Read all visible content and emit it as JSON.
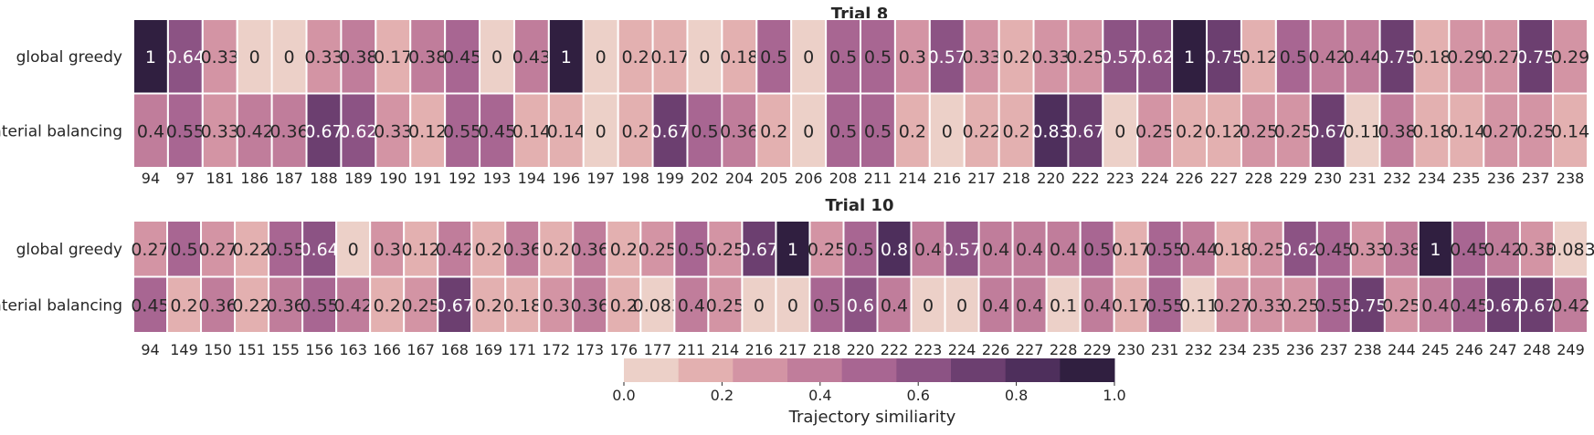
{
  "chart_data": [
    {
      "type": "heatmap",
      "title": "Trial 8",
      "rows": [
        "global greedy",
        "material balancing"
      ],
      "columns": [
        "94",
        "97",
        "181",
        "186",
        "187",
        "188",
        "189",
        "190",
        "191",
        "192",
        "193",
        "194",
        "196",
        "197",
        "198",
        "199",
        "202",
        "204",
        "205",
        "206",
        "208",
        "211",
        "214",
        "216",
        "217",
        "218",
        "220",
        "222",
        "223",
        "224",
        "226",
        "227",
        "228",
        "229",
        "230",
        "231",
        "232",
        "234",
        "235",
        "236",
        "237",
        "238"
      ],
      "values": [
        [
          1,
          0.64,
          0.33,
          0,
          0,
          0.33,
          0.38,
          0.17,
          0.38,
          0.45,
          0,
          0.43,
          1,
          0,
          0.2,
          0.17,
          0,
          0.18,
          0.5,
          0,
          0.5,
          0.5,
          0.3,
          0.57,
          0.33,
          0.2,
          0.33,
          0.25,
          0.57,
          0.62,
          1,
          0.75,
          0.12,
          0.5,
          0.42,
          0.44,
          0.75,
          0.18,
          0.29,
          0.27,
          0.75,
          0.29
        ],
        [
          0.4,
          0.55,
          0.33,
          0.42,
          0.36,
          0.67,
          0.62,
          0.33,
          0.12,
          0.55,
          0.45,
          0.14,
          0.14,
          0,
          0.2,
          0.67,
          0.5,
          0.36,
          0.2,
          0,
          0.5,
          0.5,
          0.2,
          0,
          0.22,
          0.2,
          0.83,
          0.67,
          0,
          0.25,
          0.2,
          0.12,
          0.25,
          0.25,
          0.67,
          0.11,
          0.38,
          0.18,
          0.14,
          0.27,
          0.25,
          0.14
        ]
      ],
      "value_range": [
        0,
        1
      ]
    },
    {
      "type": "heatmap",
      "title": "Trial 10",
      "rows": [
        "global greedy",
        "material balancing"
      ],
      "columns": [
        "94",
        "149",
        "150",
        "151",
        "155",
        "156",
        "163",
        "166",
        "167",
        "168",
        "169",
        "171",
        "172",
        "173",
        "176",
        "177",
        "211",
        "214",
        "216",
        "217",
        "218",
        "220",
        "222",
        "223",
        "224",
        "226",
        "227",
        "228",
        "229",
        "230",
        "231",
        "232",
        "234",
        "235",
        "236",
        "237",
        "238",
        "244",
        "245",
        "246",
        "247",
        "248",
        "249"
      ],
      "values": [
        [
          0.27,
          0.5,
          0.27,
          0.22,
          0.55,
          0.64,
          0,
          0.3,
          0.12,
          0.42,
          0.2,
          0.36,
          0.2,
          0.36,
          0.2,
          0.25,
          0.5,
          0.25,
          0.67,
          1,
          0.25,
          0.5,
          0.8,
          0.4,
          0.57,
          0.4,
          0.4,
          0.4,
          0.5,
          0.17,
          0.55,
          0.44,
          0.18,
          0.25,
          0.62,
          0.45,
          0.33,
          0.38,
          1,
          0.45,
          0.42,
          0.33,
          0.083
        ],
        [
          0.45,
          0.2,
          0.36,
          0.22,
          0.36,
          0.55,
          0.42,
          0.2,
          0.25,
          0.67,
          0.2,
          0.18,
          0.3,
          0.36,
          0.2,
          0.083,
          0.4,
          0.25,
          0,
          0,
          0.5,
          0.6,
          0.4,
          0,
          0,
          0.4,
          0.4,
          0.1,
          0.4,
          0.17,
          0.55,
          0.11,
          0.27,
          0.33,
          0.25,
          0.55,
          0.75,
          0.25,
          0.4,
          0.45,
          0.67,
          0.67,
          0.42
        ]
      ],
      "value_range": [
        0,
        1
      ]
    }
  ],
  "colorbar": {
    "label": "Trajectory similiarity",
    "range": [
      0,
      1
    ],
    "ticks": [
      "0.0",
      "0.2",
      "0.4",
      "0.6",
      "0.8",
      "1.0"
    ],
    "colors": [
      "#ecd0c8",
      "#e3b0b0",
      "#d394a4",
      "#c07d9b",
      "#a86692",
      "#8c5384",
      "#6c3f70",
      "#4e2f5c",
      "#301f40"
    ]
  }
}
